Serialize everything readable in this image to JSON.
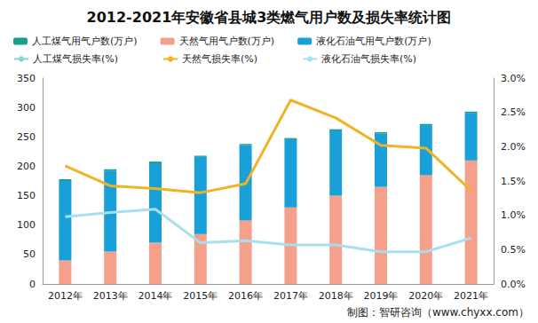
{
  "chart_data": {
    "type": "bar",
    "title": "2012-2021年安徽省县城3类燃气用户数及损失率统计图",
    "categories": [
      "2012年",
      "2013年",
      "2014年",
      "2015年",
      "2016年",
      "2017年",
      "2018年",
      "2019年",
      "2020年",
      "2021年"
    ],
    "stacked": true,
    "grid": false,
    "legend": "top",
    "ylim": [
      0,
      350
    ],
    "yticks": [
      0,
      50,
      100,
      150,
      200,
      250,
      300,
      350
    ],
    "y2lim": [
      0,
      3.0
    ],
    "y2ticks": [
      {
        "value": 0,
        "label": "0.0%"
      },
      {
        "value": 0.5,
        "label": "0.5%"
      },
      {
        "value": 1.0,
        "label": "1.0%"
      },
      {
        "value": 1.5,
        "label": "1.5%"
      },
      {
        "value": 2.0,
        "label": "2.0%"
      },
      {
        "value": 2.5,
        "label": "2.5%"
      },
      {
        "value": 3.0,
        "label": "3.0%"
      }
    ],
    "series": [
      {
        "name": "人工煤气用气户数(万户)",
        "type": "bar",
        "color": "#1a9e8f",
        "values": [
          3,
          3,
          3,
          2,
          2,
          2,
          2,
          2,
          2,
          2
        ]
      },
      {
        "name": "天然气用气户数(万户)",
        "type": "bar",
        "color": "#f4a08a",
        "values": [
          40,
          55,
          70,
          85,
          108,
          130,
          150,
          165,
          185,
          210
        ]
      },
      {
        "name": "液化石油气用气户数(万户)",
        "type": "bar",
        "color": "#1aa0d8",
        "values": [
          135,
          137,
          135,
          131,
          128,
          116,
          111,
          91,
          85,
          81
        ]
      },
      {
        "name": "人工煤气损失率(%)",
        "type": "line",
        "axis": "y2",
        "color": "#7fd6cf",
        "values": [
          null,
          null,
          null,
          null,
          null,
          null,
          null,
          null,
          null,
          null
        ]
      },
      {
        "name": "天然气损失率(%)",
        "type": "line",
        "axis": "y2",
        "color": "#f0b323",
        "values": [
          1.72,
          1.43,
          1.39,
          1.33,
          1.46,
          2.68,
          2.42,
          2.02,
          1.98,
          1.36
        ]
      },
      {
        "name": "液化石油气损失率(%)",
        "type": "line",
        "axis": "y2",
        "color": "#a8dff0",
        "values": [
          0.98,
          1.04,
          1.09,
          0.6,
          0.63,
          0.57,
          0.57,
          0.47,
          0.47,
          0.67
        ]
      }
    ],
    "annotations": [
      "制图：智研咨询（www.chyxx.com）"
    ]
  }
}
